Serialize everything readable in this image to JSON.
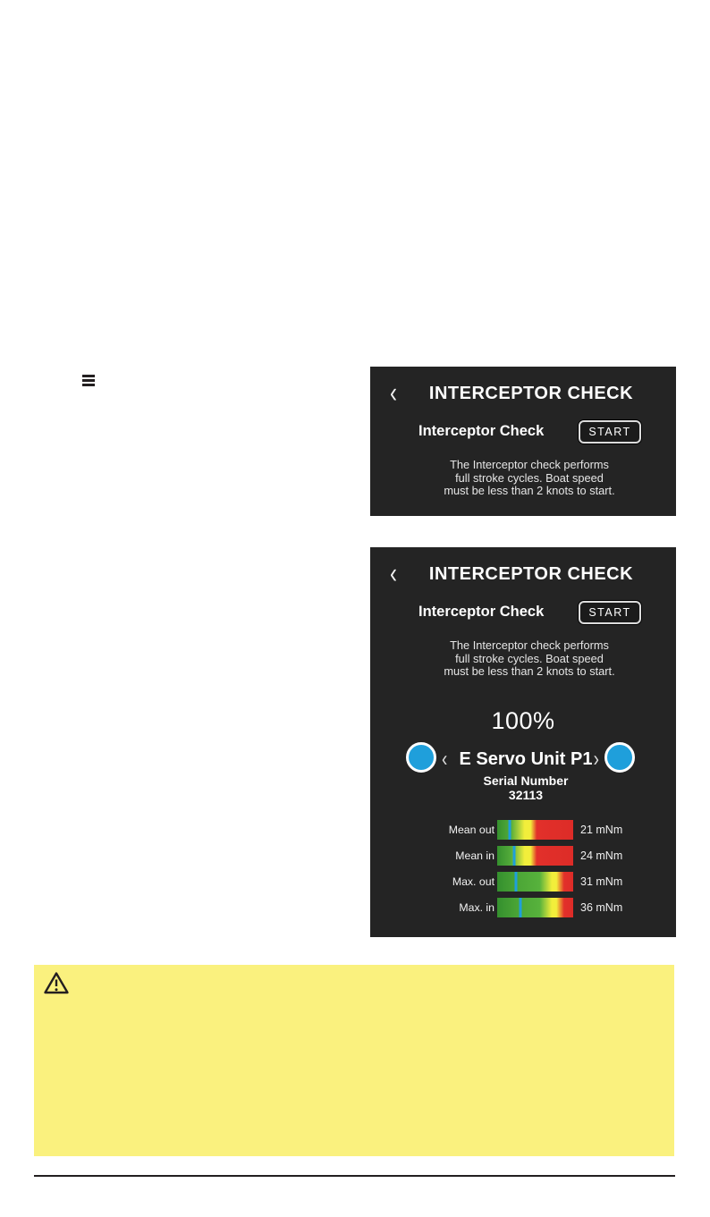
{
  "toolbar": {
    "menu_icon": "hamburger-menu-icon"
  },
  "screen_initial": {
    "back_icon": "‹",
    "title": "INTERCEPTOR CHECK",
    "check_label": "Interceptor Check",
    "start_button": "START",
    "description_lines": [
      "The Interceptor check performs",
      "full stroke cycles. Boat speed",
      "must be less than 2 knots to start."
    ]
  },
  "screen_result": {
    "back_icon": "‹",
    "title": "INTERCEPTOR CHECK",
    "check_label": "Interceptor Check",
    "start_button": "START",
    "description_lines": [
      "The Interceptor check performs",
      "full stroke cycles. Boat speed",
      "must be less than 2 knots to start."
    ],
    "progress": "100%",
    "unit": {
      "prev_icon": "‹",
      "next_icon": "›",
      "name": "E Servo Unit P1",
      "serial_label": "Serial Number",
      "serial_value": "32113"
    },
    "gauges": [
      {
        "label": "Mean out",
        "value": "21 mNm",
        "marker_pct": 17,
        "zone": "early"
      },
      {
        "label": "Mean in",
        "value": "24 mNm",
        "marker_pct": 22,
        "zone": "early"
      },
      {
        "label": "Max. out",
        "value": "31 mNm",
        "marker_pct": 25,
        "zone": "late"
      },
      {
        "label": "Max. in",
        "value": "36 mNm",
        "marker_pct": 30,
        "zone": "late"
      }
    ]
  },
  "warning_box": {
    "icon": "warning-triangle-icon"
  },
  "colors": {
    "panel_background": "#242424",
    "accent_blue": "#1f9fdb",
    "gauge_green": "#35902e",
    "gauge_yellow": "#f2ee3b",
    "gauge_red": "#e2302a",
    "warning_yellow": "#faf17e",
    "ink": "#231f20"
  }
}
